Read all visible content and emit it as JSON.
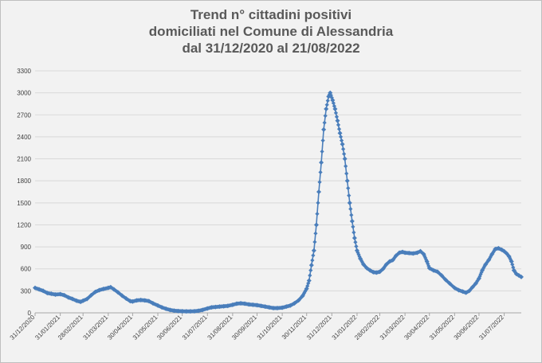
{
  "chart_data": {
    "type": "line",
    "title": [
      "Trend n° cittadini positivi",
      "domiciliati nel Comune di Alessandria",
      "dal 31/12/2020 al 21/08/2022"
    ],
    "xlabel": "",
    "ylabel": "",
    "ylim": [
      0,
      3300
    ],
    "yticks": [
      "0",
      "300",
      "600",
      "900",
      "1200",
      "1500",
      "1800",
      "2100",
      "2400",
      "2700",
      "3000",
      "3300"
    ],
    "xticks": [
      {
        "date": "2020-12-31",
        "label": "31/12/2020"
      },
      {
        "date": "2021-01-31",
        "label": "31/01/2021"
      },
      {
        "date": "2021-02-28",
        "label": "28/02/2021"
      },
      {
        "date": "2021-03-31",
        "label": "31/03/2021"
      },
      {
        "date": "2021-04-30",
        "label": "30/04/2021"
      },
      {
        "date": "2021-05-31",
        "label": "31/05/2021"
      },
      {
        "date": "2021-06-30",
        "label": "30/06/2021"
      },
      {
        "date": "2021-07-31",
        "label": "31/07/2021"
      },
      {
        "date": "2021-08-31",
        "label": "31/08/2021"
      },
      {
        "date": "2021-09-30",
        "label": "30/09/2021"
      },
      {
        "date": "2021-10-31",
        "label": "31/10/2021"
      },
      {
        "date": "2021-11-30",
        "label": "30/11/2021"
      },
      {
        "date": "2021-12-31",
        "label": "31/12/2021"
      },
      {
        "date": "2022-01-31",
        "label": "31/01/2022"
      },
      {
        "date": "2022-02-28",
        "label": "28/02/2022"
      },
      {
        "date": "2022-03-31",
        "label": "31/03/2022"
      },
      {
        "date": "2022-04-30",
        "label": "30/04/2022"
      },
      {
        "date": "2022-05-31",
        "label": "31/05/2022"
      },
      {
        "date": "2022-06-30",
        "label": "30/06/2022"
      },
      {
        "date": "2022-07-31",
        "label": "31/07/2022"
      }
    ],
    "xrange": [
      "2020-12-31",
      "2022-08-21"
    ],
    "grid": true,
    "colors": {
      "line": "#4a7ebb",
      "grid": "#d9d9d9",
      "axis_text": "#404040"
    },
    "series": [
      {
        "points": [
          [
            "2020-12-31",
            340
          ],
          [
            "2021-01-05",
            320
          ],
          [
            "2021-01-10",
            300
          ],
          [
            "2021-01-15",
            270
          ],
          [
            "2021-01-20",
            260
          ],
          [
            "2021-01-25",
            250
          ],
          [
            "2021-01-31",
            255
          ],
          [
            "2021-02-05",
            240
          ],
          [
            "2021-02-10",
            210
          ],
          [
            "2021-02-15",
            190
          ],
          [
            "2021-02-20",
            165
          ],
          [
            "2021-02-25",
            150
          ],
          [
            "2021-02-28",
            165
          ],
          [
            "2021-03-05",
            190
          ],
          [
            "2021-03-10",
            240
          ],
          [
            "2021-03-15",
            285
          ],
          [
            "2021-03-20",
            310
          ],
          [
            "2021-03-25",
            325
          ],
          [
            "2021-03-31",
            340
          ],
          [
            "2021-04-03",
            350
          ],
          [
            "2021-04-07",
            320
          ],
          [
            "2021-04-12",
            280
          ],
          [
            "2021-04-17",
            235
          ],
          [
            "2021-04-22",
            195
          ],
          [
            "2021-04-27",
            160
          ],
          [
            "2021-04-30",
            155
          ],
          [
            "2021-05-05",
            170
          ],
          [
            "2021-05-10",
            175
          ],
          [
            "2021-05-15",
            170
          ],
          [
            "2021-05-20",
            160
          ],
          [
            "2021-05-25",
            130
          ],
          [
            "2021-05-31",
            100
          ],
          [
            "2021-06-05",
            75
          ],
          [
            "2021-06-10",
            55
          ],
          [
            "2021-06-15",
            40
          ],
          [
            "2021-06-20",
            30
          ],
          [
            "2021-06-25",
            25
          ],
          [
            "2021-06-30",
            22
          ],
          [
            "2021-07-05",
            20
          ],
          [
            "2021-07-10",
            20
          ],
          [
            "2021-07-15",
            22
          ],
          [
            "2021-07-20",
            28
          ],
          [
            "2021-07-25",
            40
          ],
          [
            "2021-07-31",
            60
          ],
          [
            "2021-08-05",
            75
          ],
          [
            "2021-08-10",
            80
          ],
          [
            "2021-08-15",
            85
          ],
          [
            "2021-08-20",
            90
          ],
          [
            "2021-08-25",
            95
          ],
          [
            "2021-08-31",
            110
          ],
          [
            "2021-09-05",
            125
          ],
          [
            "2021-09-10",
            130
          ],
          [
            "2021-09-15",
            125
          ],
          [
            "2021-09-20",
            115
          ],
          [
            "2021-09-25",
            110
          ],
          [
            "2021-09-30",
            105
          ],
          [
            "2021-10-05",
            95
          ],
          [
            "2021-10-10",
            85
          ],
          [
            "2021-10-15",
            75
          ],
          [
            "2021-10-20",
            65
          ],
          [
            "2021-10-25",
            65
          ],
          [
            "2021-10-31",
            70
          ],
          [
            "2021-11-05",
            85
          ],
          [
            "2021-11-10",
            100
          ],
          [
            "2021-11-15",
            130
          ],
          [
            "2021-11-20",
            170
          ],
          [
            "2021-11-25",
            230
          ],
          [
            "2021-11-30",
            330
          ],
          [
            "2021-12-03",
            440
          ],
          [
            "2021-12-06",
            650
          ],
          [
            "2021-12-09",
            850
          ],
          [
            "2021-12-12",
            1200
          ],
          [
            "2021-12-15",
            1650
          ],
          [
            "2021-12-18",
            2050
          ],
          [
            "2021-12-21",
            2500
          ],
          [
            "2021-12-24",
            2780
          ],
          [
            "2021-12-27",
            2950
          ],
          [
            "2021-12-29",
            3000
          ],
          [
            "2022-01-01",
            2900
          ],
          [
            "2022-01-04",
            2780
          ],
          [
            "2022-01-07",
            2620
          ],
          [
            "2022-01-10",
            2450
          ],
          [
            "2022-01-13",
            2300
          ],
          [
            "2022-01-16",
            2100
          ],
          [
            "2022-01-19",
            1800
          ],
          [
            "2022-01-22",
            1500
          ],
          [
            "2022-01-25",
            1250
          ],
          [
            "2022-01-28",
            1020
          ],
          [
            "2022-01-31",
            850
          ],
          [
            "2022-02-04",
            740
          ],
          [
            "2022-02-08",
            660
          ],
          [
            "2022-02-12",
            610
          ],
          [
            "2022-02-16",
            580
          ],
          [
            "2022-02-20",
            555
          ],
          [
            "2022-02-24",
            550
          ],
          [
            "2022-02-28",
            560
          ],
          [
            "2022-03-04",
            600
          ],
          [
            "2022-03-08",
            660
          ],
          [
            "2022-03-12",
            700
          ],
          [
            "2022-03-16",
            720
          ],
          [
            "2022-03-20",
            780
          ],
          [
            "2022-03-24",
            820
          ],
          [
            "2022-03-28",
            830
          ],
          [
            "2022-03-31",
            820
          ],
          [
            "2022-04-05",
            815
          ],
          [
            "2022-04-10",
            810
          ],
          [
            "2022-04-15",
            820
          ],
          [
            "2022-04-19",
            840
          ],
          [
            "2022-04-23",
            800
          ],
          [
            "2022-04-27",
            700
          ],
          [
            "2022-04-30",
            610
          ],
          [
            "2022-05-05",
            580
          ],
          [
            "2022-05-10",
            560
          ],
          [
            "2022-05-15",
            510
          ],
          [
            "2022-05-20",
            450
          ],
          [
            "2022-05-25",
            400
          ],
          [
            "2022-05-31",
            340
          ],
          [
            "2022-06-05",
            310
          ],
          [
            "2022-06-10",
            290
          ],
          [
            "2022-06-14",
            275
          ],
          [
            "2022-06-18",
            300
          ],
          [
            "2022-06-22",
            350
          ],
          [
            "2022-06-26",
            400
          ],
          [
            "2022-06-30",
            470
          ],
          [
            "2022-07-04",
            580
          ],
          [
            "2022-07-08",
            660
          ],
          [
            "2022-07-12",
            720
          ],
          [
            "2022-07-16",
            800
          ],
          [
            "2022-07-20",
            870
          ],
          [
            "2022-07-24",
            880
          ],
          [
            "2022-07-28",
            860
          ],
          [
            "2022-07-31",
            840
          ],
          [
            "2022-08-03",
            810
          ],
          [
            "2022-08-06",
            770
          ],
          [
            "2022-08-09",
            700
          ],
          [
            "2022-08-12",
            580
          ],
          [
            "2022-08-15",
            530
          ],
          [
            "2022-08-18",
            510
          ],
          [
            "2022-08-21",
            490
          ]
        ]
      }
    ]
  }
}
